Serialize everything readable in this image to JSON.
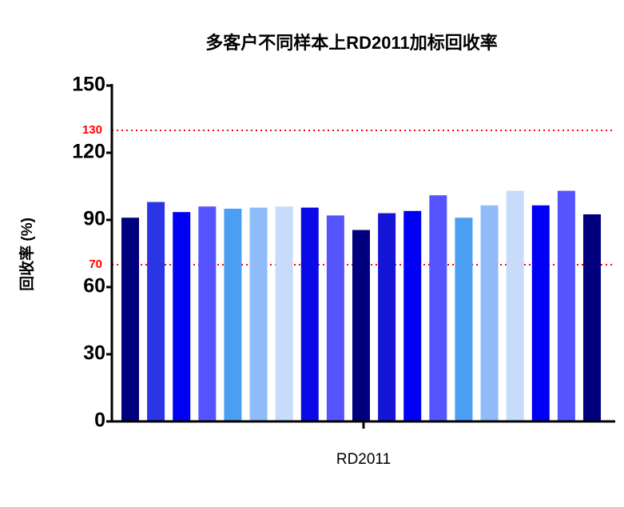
{
  "chart_data": {
    "type": "bar",
    "title": "多客户不同样本上RD2011加标回收率",
    "y_label": "回收率 (%)",
    "categories": [
      "RD2011"
    ],
    "series": [
      {
        "color": "#00007f",
        "values": [
          91
        ]
      },
      {
        "color": "#2a35e6",
        "values": [
          98
        ]
      },
      {
        "color": "#0000f5",
        "values": [
          93.5
        ]
      },
      {
        "color": "#5555ff",
        "values": [
          96
        ]
      },
      {
        "color": "#4a9ff2",
        "values": [
          95
        ]
      },
      {
        "color": "#8fbcf8",
        "values": [
          95.5
        ]
      },
      {
        "color": "#c6dcfa",
        "values": [
          96
        ]
      },
      {
        "color": "#0a0ae6",
        "values": [
          95.5
        ]
      },
      {
        "color": "#5555ff",
        "values": [
          92
        ]
      },
      {
        "color": "#00007f",
        "values": [
          85.5
        ]
      },
      {
        "color": "#1515d8",
        "values": [
          93
        ]
      },
      {
        "color": "#0000f5",
        "values": [
          94
        ]
      },
      {
        "color": "#5555ff",
        "values": [
          101
        ]
      },
      {
        "color": "#4a9ff2",
        "values": [
          91
        ]
      },
      {
        "color": "#8fbcf8",
        "values": [
          96.5
        ]
      },
      {
        "color": "#c6dcfa",
        "values": [
          103
        ]
      },
      {
        "color": "#0000f5",
        "values": [
          96.5
        ]
      },
      {
        "color": "#5555ff",
        "values": [
          103
        ]
      },
      {
        "color": "#00007f",
        "values": [
          92.5
        ]
      }
    ],
    "ylim": [
      0,
      150
    ],
    "yticks": [
      0,
      30,
      60,
      90,
      120,
      150
    ],
    "reference_lines": [
      {
        "value": 130,
        "color": "#ff0000"
      },
      {
        "value": 70,
        "color": "#ff0000"
      }
    ]
  }
}
